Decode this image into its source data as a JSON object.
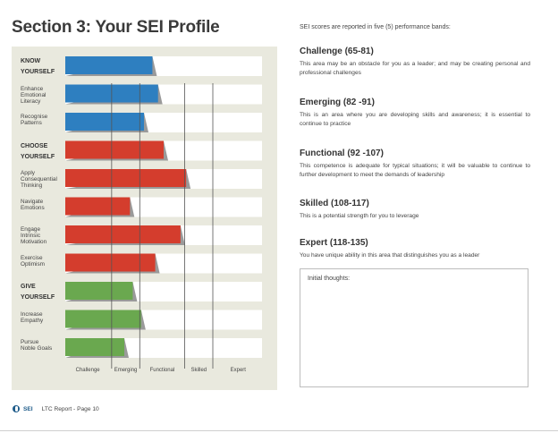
{
  "title": "Section 3: Your SEI Profile",
  "intro": "SEI scores are reported in five (5) performance bands:",
  "bands": [
    {
      "heading": "Challenge (65-81)",
      "text": "This area may be an obstacle for you as a leader; and may be creating personal and professional challenges"
    },
    {
      "heading": "Emerging (82 -91)",
      "text": "This is an area where you are developing skills and awareness; it is essential to continue to practice"
    },
    {
      "heading": "Functional (92 -107)",
      "text": "This competence is adequate for typical situations; it will be valuable to continue to further development to meet the demands of leadership"
    },
    {
      "heading": "Skilled (108-117)",
      "text": "This is a potential strength for you to leverage"
    },
    {
      "heading": "Expert (118-135)",
      "text": "You have unique ability in this area that distinguishes you as a leader"
    }
  ],
  "thoughts_label": "Initial thoughts:",
  "footer": {
    "logo": "SEI",
    "text": "LTC Report - Page 10"
  },
  "colors": {
    "know": "#2e7fc0",
    "choose": "#d43d2d",
    "give": "#6aa84f",
    "panel": "#e9e9de",
    "track": "#ffffff"
  },
  "chart_data": {
    "type": "bar",
    "orientation": "horizontal",
    "x_bands": [
      "Challenge",
      "Emerging",
      "Functional",
      "Skilled",
      "Expert"
    ],
    "band_ranges": [
      [
        65,
        81
      ],
      [
        82,
        91
      ],
      [
        92,
        107
      ],
      [
        108,
        117
      ],
      [
        118,
        135
      ]
    ],
    "xlim": [
      65,
      135
    ],
    "rows": [
      {
        "label": "KNOW\nYOURSELF",
        "category": "know",
        "header": true,
        "value": 96
      },
      {
        "label": "Enhance\nEmotional\nLiteracy",
        "category": "know",
        "header": false,
        "value": 98
      },
      {
        "label": "Recognise\nPatterns",
        "category": "know",
        "header": false,
        "value": 93
      },
      {
        "label": "CHOOSE\nYOURSELF",
        "category": "choose",
        "header": true,
        "value": 100
      },
      {
        "label": "Apply\nConsequential\nThinking",
        "category": "choose",
        "header": false,
        "value": 108
      },
      {
        "label": "Navigate\nEmotions",
        "category": "choose",
        "header": false,
        "value": 88
      },
      {
        "label": "Engage\nIntrinsic\nMotivation",
        "category": "choose",
        "header": false,
        "value": 106
      },
      {
        "label": "Exercise\nOptimism",
        "category": "choose",
        "header": false,
        "value": 97
      },
      {
        "label": "GIVE\nYOURSELF",
        "category": "give",
        "header": true,
        "value": 89
      },
      {
        "label": "Increase\nEmpathy",
        "category": "give",
        "header": false,
        "value": 92
      },
      {
        "label": "Pursue\nNoble Goals",
        "category": "give",
        "header": false,
        "value": 86
      }
    ]
  }
}
